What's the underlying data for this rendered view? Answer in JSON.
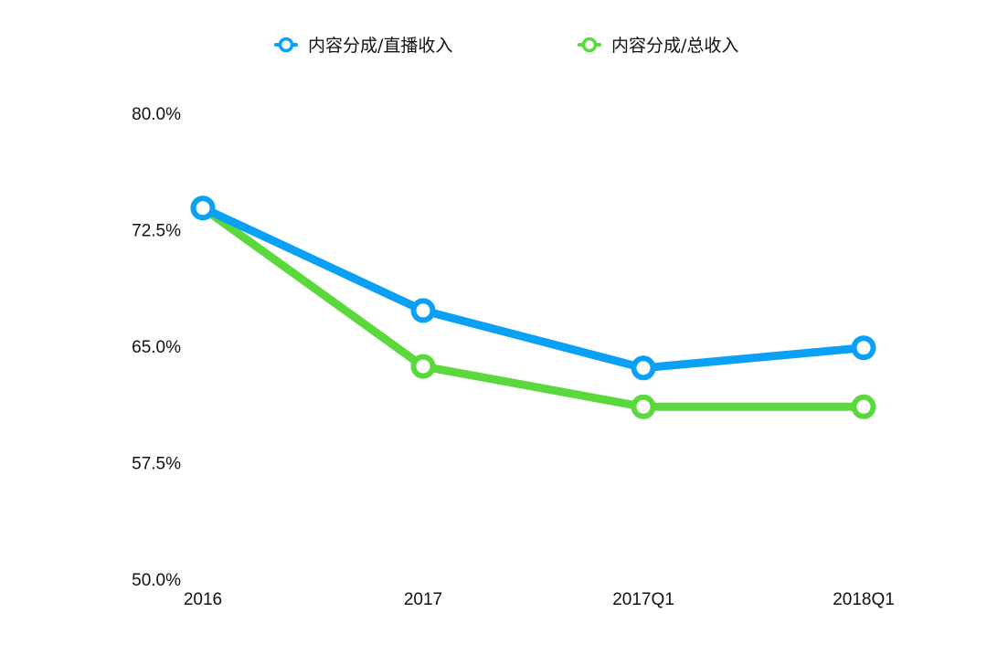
{
  "chart_data": {
    "type": "line",
    "categories": [
      "2016",
      "2017",
      "2017Q1",
      "2018Q1"
    ],
    "series": [
      {
        "name": "内容分成/直播收入",
        "color": "#0aa0f5",
        "values": [
          73.9,
          67.3,
          63.6,
          64.9
        ]
      },
      {
        "name": "内容分成/总收入",
        "color": "#5ad83c",
        "values": [
          73.9,
          63.7,
          61.1,
          61.1
        ]
      }
    ],
    "ylim": [
      50.0,
      80.0
    ],
    "yticks": [
      "80.0%",
      "72.5%",
      "65.0%",
      "57.5%",
      "50.0%"
    ],
    "ytick_values": [
      80.0,
      72.5,
      65.0,
      57.5,
      50.0
    ],
    "legend_position": "top-center",
    "grid": false
  }
}
